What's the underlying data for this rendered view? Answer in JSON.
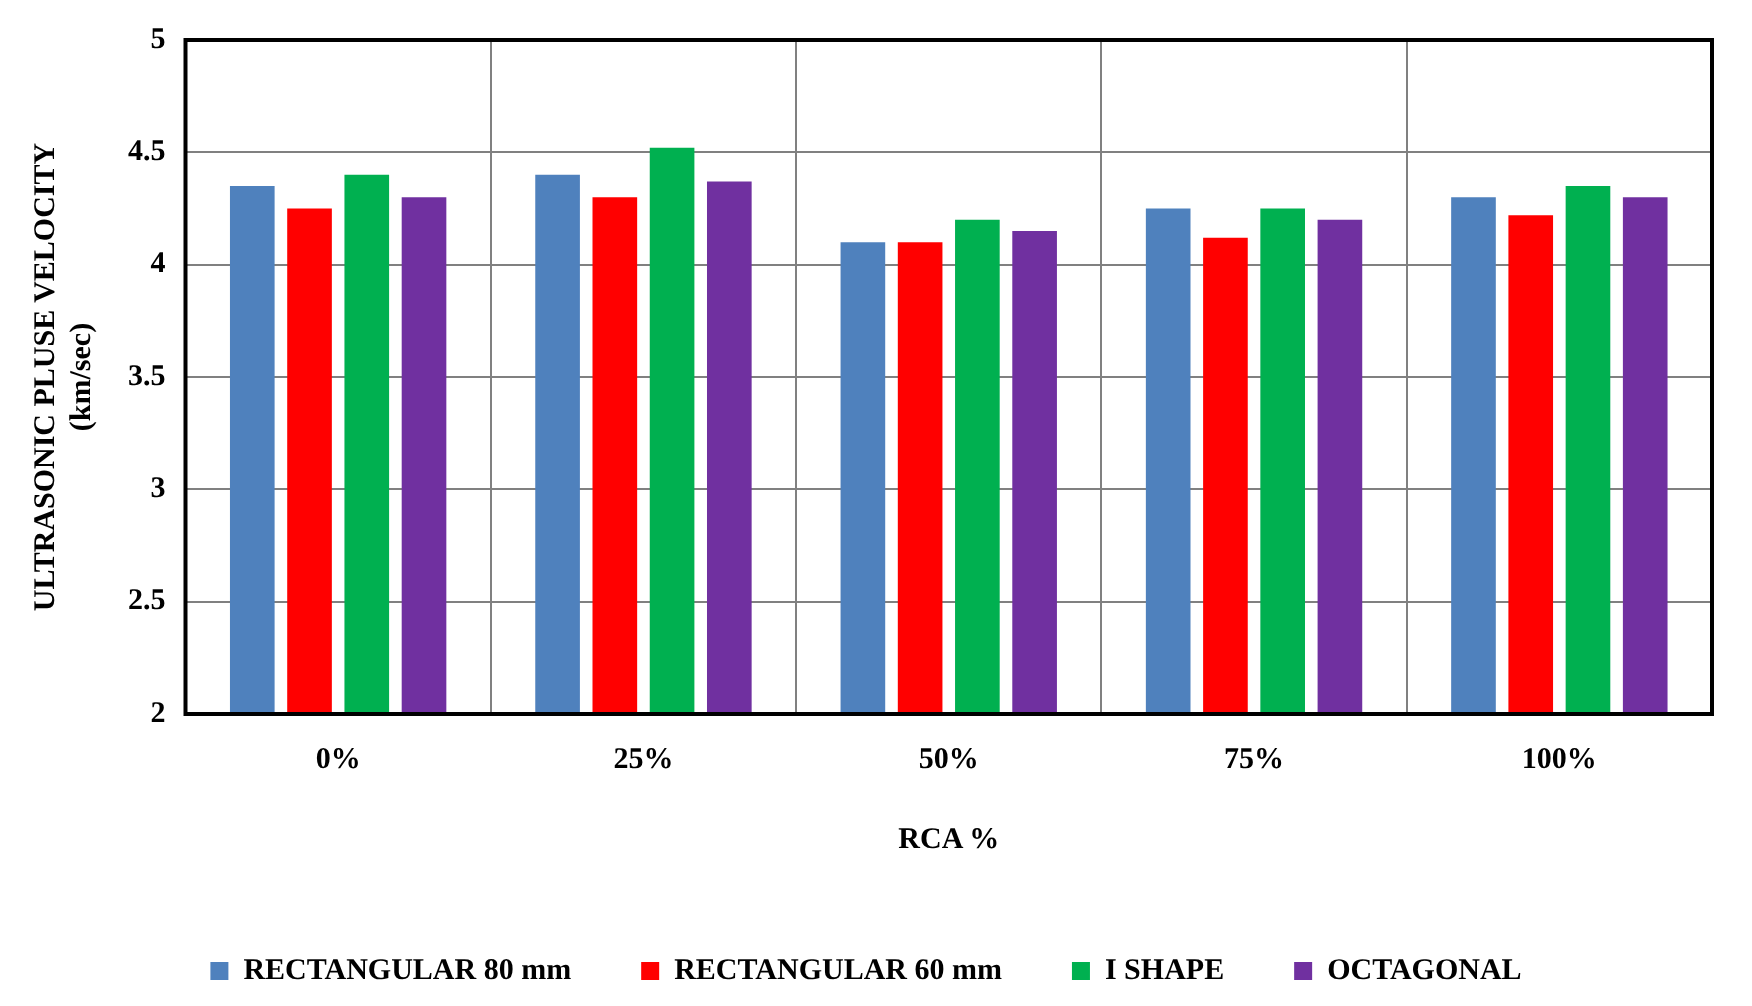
{
  "chart_data": {
    "type": "bar",
    "xlabel": "RCA %",
    "ylabel": "ULTRASONIC PLUSE VELOCITY (km/sec)",
    "categories": [
      "0%",
      "25%",
      "50%",
      "75%",
      "100%"
    ],
    "series": [
      {
        "name": "RECTANGULAR 80 mm",
        "color": "#4f81bd",
        "values": [
          4.35,
          4.4,
          4.1,
          4.25,
          4.3
        ]
      },
      {
        "name": "RECTANGULAR 60 mm",
        "color": "#ff0000",
        "values": [
          4.25,
          4.3,
          4.1,
          4.12,
          4.22
        ]
      },
      {
        "name": "I SHAPE",
        "color": "#00b050",
        "values": [
          4.4,
          4.52,
          4.2,
          4.25,
          4.35
        ]
      },
      {
        "name": "OCTAGONAL",
        "color": "#7030a0",
        "values": [
          4.3,
          4.37,
          4.15,
          4.2,
          4.3
        ]
      }
    ],
    "ylim": [
      2,
      5
    ],
    "yticks": [
      2,
      2.5,
      3,
      3.5,
      4,
      4.5,
      5
    ],
    "grid": true,
    "legend": "bottom"
  }
}
